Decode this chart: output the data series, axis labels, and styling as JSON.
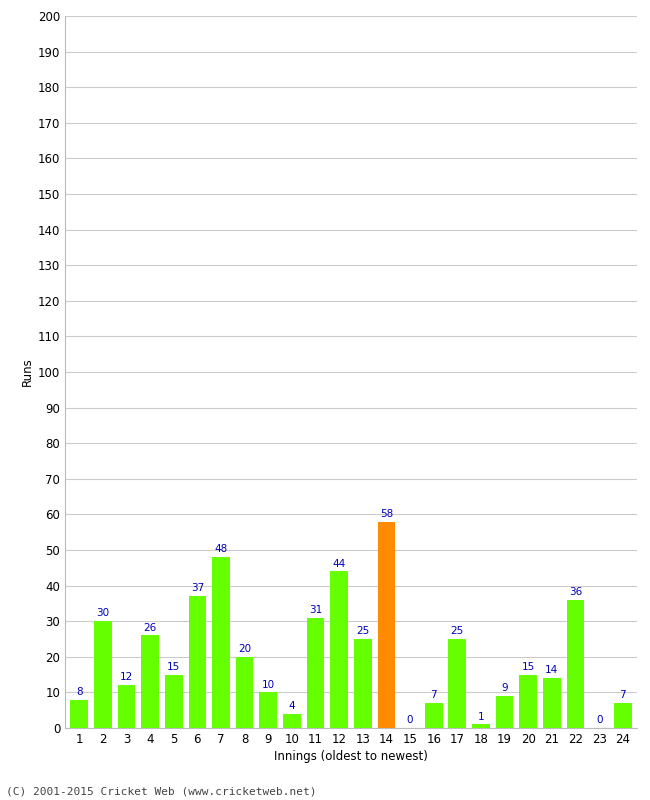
{
  "innings": [
    1,
    2,
    3,
    4,
    5,
    6,
    7,
    8,
    9,
    10,
    11,
    12,
    13,
    14,
    15,
    16,
    17,
    18,
    19,
    20,
    21,
    22,
    23,
    24
  ],
  "runs": [
    8,
    30,
    12,
    26,
    15,
    37,
    48,
    20,
    10,
    4,
    31,
    44,
    25,
    58,
    0,
    7,
    25,
    1,
    9,
    15,
    14,
    36,
    0,
    7
  ],
  "highlight_index": 13,
  "bar_color_normal": "#66ff00",
  "bar_color_highlight": "#ff8c00",
  "label_color": "#0000bb",
  "ylabel": "Runs",
  "xlabel": "Innings (oldest to newest)",
  "ylim": [
    0,
    200
  ],
  "yticks": [
    0,
    10,
    20,
    30,
    40,
    50,
    60,
    70,
    80,
    90,
    100,
    110,
    120,
    130,
    140,
    150,
    160,
    170,
    180,
    190,
    200
  ],
  "background_color": "#ffffff",
  "grid_color": "#cccccc",
  "footer": "(C) 2001-2015 Cricket Web (www.cricketweb.net)",
  "label_fontsize": 7.5,
  "axis_fontsize": 8.5,
  "footer_fontsize": 8,
  "bar_width": 0.75
}
